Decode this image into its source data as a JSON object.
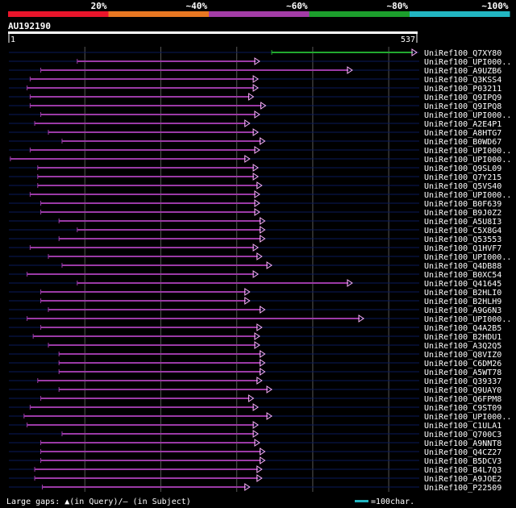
{
  "query": {
    "name": "AU192190",
    "start": "1",
    "end": "537",
    "length": 537
  },
  "identity_legend": [
    {
      "label": "20%",
      "color": "#e8152b"
    },
    {
      "label": "~40%",
      "color": "#e87722"
    },
    {
      "label": "~60%",
      "color": "#a33ca6"
    },
    {
      "label": "~80%",
      "color": "#1c9e2c"
    },
    {
      "label": "~100%",
      "color": "#22b6c2"
    }
  ],
  "colors": {
    "background": "#000000",
    "hit_line": "#9b3aa6",
    "top_hit_line": "#22a92f",
    "rail": "#0a1a5a",
    "gridline": "#555555",
    "text": "#ffffff",
    "scale_bar": "#22b6c2"
  },
  "hits": [
    {
      "label": "UniRef100_Q7XY80",
      "s": 346,
      "e": 537,
      "color": "top"
    },
    {
      "label": "UniRef100_UPI000..",
      "s": 90,
      "e": 330
    },
    {
      "label": "UniRef100_A9UZB6",
      "s": 42,
      "e": 452
    },
    {
      "label": "UniRef100_Q3KSS4",
      "s": 28,
      "e": 328
    },
    {
      "label": "UniRef100_P03211",
      "s": 24,
      "e": 328
    },
    {
      "label": "UniRef100_Q9IPQ9",
      "s": 28,
      "e": 322
    },
    {
      "label": "UniRef100_Q9IPQ8",
      "s": 28,
      "e": 338
    },
    {
      "label": "UniRef100_UPI000..",
      "s": 42,
      "e": 330
    },
    {
      "label": "UniRef100_A2E4P1",
      "s": 34,
      "e": 317
    },
    {
      "label": "UniRef100_A8HTG7",
      "s": 52,
      "e": 328
    },
    {
      "label": "UniRef100_B0WD67",
      "s": 70,
      "e": 337
    },
    {
      "label": "UniRef100_UPI000..",
      "s": 28,
      "e": 330
    },
    {
      "label": "UniRef100_UPI000..",
      "s": 2,
      "e": 317
    },
    {
      "label": "UniRef100_Q9SL09",
      "s": 38,
      "e": 328
    },
    {
      "label": "UniRef100_Q7Y215",
      "s": 38,
      "e": 328
    },
    {
      "label": "UniRef100_Q5VS40",
      "s": 38,
      "e": 333
    },
    {
      "label": "UniRef100_UPI000..",
      "s": 28,
      "e": 330
    },
    {
      "label": "UniRef100_B0F639",
      "s": 42,
      "e": 330
    },
    {
      "label": "UniRef100_B9J0Z2",
      "s": 42,
      "e": 330
    },
    {
      "label": "UniRef100_A5U8I3",
      "s": 66,
      "e": 337
    },
    {
      "label": "UniRef100_C5X8G4",
      "s": 90,
      "e": 337
    },
    {
      "label": "UniRef100_Q53553",
      "s": 66,
      "e": 337
    },
    {
      "label": "UniRef100_Q1HVF7",
      "s": 28,
      "e": 328
    },
    {
      "label": "UniRef100_UPI000..",
      "s": 52,
      "e": 333
    },
    {
      "label": "UniRef100_Q4DB88",
      "s": 70,
      "e": 346
    },
    {
      "label": "UniRef100_B0XC54",
      "s": 24,
      "e": 328
    },
    {
      "label": "UniRef100_Q41645",
      "s": 90,
      "e": 452
    },
    {
      "label": "UniRef100_B2HLI0",
      "s": 42,
      "e": 317
    },
    {
      "label": "UniRef100_B2HLH9",
      "s": 42,
      "e": 317
    },
    {
      "label": "UniRef100_A9G6N3",
      "s": 52,
      "e": 337
    },
    {
      "label": "UniRef100_UPI000..",
      "s": 24,
      "e": 467
    },
    {
      "label": "UniRef100_Q4A2B5",
      "s": 42,
      "e": 333
    },
    {
      "label": "UniRef100_B2HDU1",
      "s": 32,
      "e": 330
    },
    {
      "label": "UniRef100_A3Q2Q5",
      "s": 52,
      "e": 330
    },
    {
      "label": "UniRef100_Q8VIZ0",
      "s": 66,
      "e": 337
    },
    {
      "label": "UniRef100_C6DM26",
      "s": 66,
      "e": 337
    },
    {
      "label": "UniRef100_A5WT78",
      "s": 66,
      "e": 337
    },
    {
      "label": "UniRef100_Q39337",
      "s": 38,
      "e": 333
    },
    {
      "label": "UniRef100_Q9UAY0",
      "s": 66,
      "e": 346
    },
    {
      "label": "UniRef100_Q6FPM8",
      "s": 42,
      "e": 322
    },
    {
      "label": "UniRef100_C9ST09",
      "s": 28,
      "e": 328
    },
    {
      "label": "UniRef100_UPI000..",
      "s": 20,
      "e": 346
    },
    {
      "label": "UniRef100_C1ULA1",
      "s": 24,
      "e": 328
    },
    {
      "label": "UniRef100_Q700C3",
      "s": 70,
      "e": 328
    },
    {
      "label": "UniRef100_A9NNT8",
      "s": 42,
      "e": 330
    },
    {
      "label": "UniRef100_Q4CZ27",
      "s": 42,
      "e": 337
    },
    {
      "label": "UniRef100_B5DCV3",
      "s": 42,
      "e": 337
    },
    {
      "label": "UniRef100_B4L7Q3",
      "s": 34,
      "e": 333
    },
    {
      "label": "UniRef100_A9JOE2",
      "s": 34,
      "e": 333
    },
    {
      "label": "UniRef100_P22509",
      "s": 44,
      "e": 317
    }
  ],
  "footer": {
    "gaps_text": "Large gaps: ▲(in Query)/– (in Subject)",
    "scale_text": "=100char."
  }
}
